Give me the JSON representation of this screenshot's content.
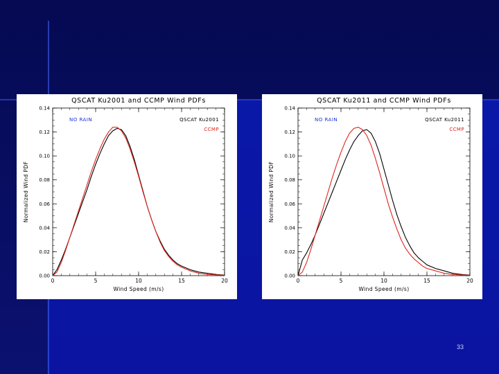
{
  "slide": {
    "page_number": "33",
    "colors": {
      "background": "#0a0f6a",
      "panel": "#ffffff",
      "accent_line": "#2f4cd6"
    }
  },
  "chart_data": [
    {
      "type": "line",
      "title": "QSCAT Ku2001 and CCMP Wind PDFs",
      "xlabel": "Wind Speed (m/s)",
      "ylabel": "Normalized Wind PDF",
      "xlim": [
        0,
        20
      ],
      "ylim": [
        0,
        0.14
      ],
      "xticks": [
        "0",
        "5",
        "10",
        "15",
        "20"
      ],
      "yticks": [
        "0.00",
        "0.02",
        "0.04",
        "0.06",
        "0.08",
        "0.10",
        "0.12",
        "0.14"
      ],
      "annotation": "NO RAIN",
      "annotation_color": "#1a2fd6",
      "legend_position": "top-right",
      "series": [
        {
          "name": "QSCAT Ku2001",
          "color": "#000000",
          "x": [
            0,
            0.5,
            1,
            1.5,
            2,
            2.5,
            3,
            3.5,
            4,
            4.5,
            5,
            5.5,
            6,
            6.5,
            7,
            7.5,
            8,
            8.5,
            9,
            9.5,
            10,
            10.5,
            11,
            11.5,
            12,
            12.5,
            13,
            13.5,
            14,
            14.5,
            15,
            16,
            17,
            18,
            19,
            20
          ],
          "values": [
            0,
            0.005,
            0.013,
            0.022,
            0.032,
            0.042,
            0.052,
            0.062,
            0.072,
            0.083,
            0.093,
            0.102,
            0.11,
            0.117,
            0.121,
            0.123,
            0.122,
            0.117,
            0.108,
            0.097,
            0.084,
            0.071,
            0.058,
            0.047,
            0.037,
            0.029,
            0.022,
            0.017,
            0.013,
            0.01,
            0.008,
            0.005,
            0.003,
            0.002,
            0.001,
            0.0005
          ]
        },
        {
          "name": "CCMP",
          "color": "#e0231a",
          "x": [
            0,
            0.5,
            1,
            1.5,
            2,
            2.5,
            3,
            3.5,
            4,
            4.5,
            5,
            5.5,
            6,
            6.5,
            7,
            7.5,
            8,
            8.5,
            9,
            9.5,
            10,
            10.5,
            11,
            11.5,
            12,
            12.5,
            13,
            13.5,
            14,
            14.5,
            15,
            16,
            17,
            18,
            19,
            20
          ],
          "values": [
            0,
            0.003,
            0.011,
            0.021,
            0.032,
            0.043,
            0.054,
            0.065,
            0.076,
            0.087,
            0.097,
            0.106,
            0.114,
            0.12,
            0.124,
            0.124,
            0.121,
            0.115,
            0.106,
            0.095,
            0.083,
            0.07,
            0.058,
            0.047,
            0.037,
            0.028,
            0.021,
            0.016,
            0.012,
            0.009,
            0.007,
            0.004,
            0.002,
            0.001,
            0.0007,
            0.0003
          ]
        }
      ]
    },
    {
      "type": "line",
      "title": "QSCAT Ku2011 and CCMP Wind PDFs",
      "xlabel": "Wind Speed (m/s)",
      "ylabel": "Normalized Wind PDF",
      "xlim": [
        0,
        20
      ],
      "ylim": [
        0,
        0.14
      ],
      "xticks": [
        "0",
        "5",
        "10",
        "15",
        "20"
      ],
      "yticks": [
        "0.00",
        "0.02",
        "0.04",
        "0.06",
        "0.08",
        "0.10",
        "0.12",
        "0.14"
      ],
      "annotation": "NO RAIN",
      "annotation_color": "#1a2fd6",
      "legend_position": "top-right",
      "series": [
        {
          "name": "QSCAT Ku2011",
          "color": "#000000",
          "x": [
            0,
            0.5,
            1,
            1.5,
            2,
            2.5,
            3,
            3.5,
            4,
            4.5,
            5,
            5.5,
            6,
            6.5,
            7,
            7.5,
            8,
            8.5,
            9,
            9.5,
            10,
            10.5,
            11,
            11.5,
            12,
            12.5,
            13,
            13.5,
            14,
            14.5,
            15,
            16,
            17,
            18,
            19,
            20
          ],
          "values": [
            0,
            0.013,
            0.019,
            0.026,
            0.034,
            0.043,
            0.052,
            0.061,
            0.07,
            0.079,
            0.088,
            0.097,
            0.105,
            0.112,
            0.117,
            0.121,
            0.122,
            0.119,
            0.112,
            0.102,
            0.089,
            0.076,
            0.063,
            0.051,
            0.041,
            0.032,
            0.025,
            0.019,
            0.015,
            0.012,
            0.009,
            0.006,
            0.004,
            0.002,
            0.001,
            0.0005
          ]
        },
        {
          "name": "CCMP",
          "color": "#e0231a",
          "x": [
            0,
            0.5,
            1,
            1.5,
            2,
            2.5,
            3,
            3.5,
            4,
            4.5,
            5,
            5.5,
            6,
            6.5,
            7,
            7.5,
            8,
            8.5,
            9,
            9.5,
            10,
            10.5,
            11,
            11.5,
            12,
            12.5,
            13,
            13.5,
            14,
            14.5,
            15,
            16,
            17,
            18,
            19,
            20
          ],
          "values": [
            0,
            0.003,
            0.011,
            0.022,
            0.034,
            0.046,
            0.058,
            0.07,
            0.082,
            0.093,
            0.103,
            0.112,
            0.119,
            0.123,
            0.124,
            0.122,
            0.117,
            0.109,
            0.098,
            0.086,
            0.073,
            0.06,
            0.049,
            0.039,
            0.03,
            0.023,
            0.018,
            0.014,
            0.011,
            0.008,
            0.006,
            0.004,
            0.002,
            0.001,
            0.0006,
            0.0003
          ]
        }
      ]
    }
  ]
}
